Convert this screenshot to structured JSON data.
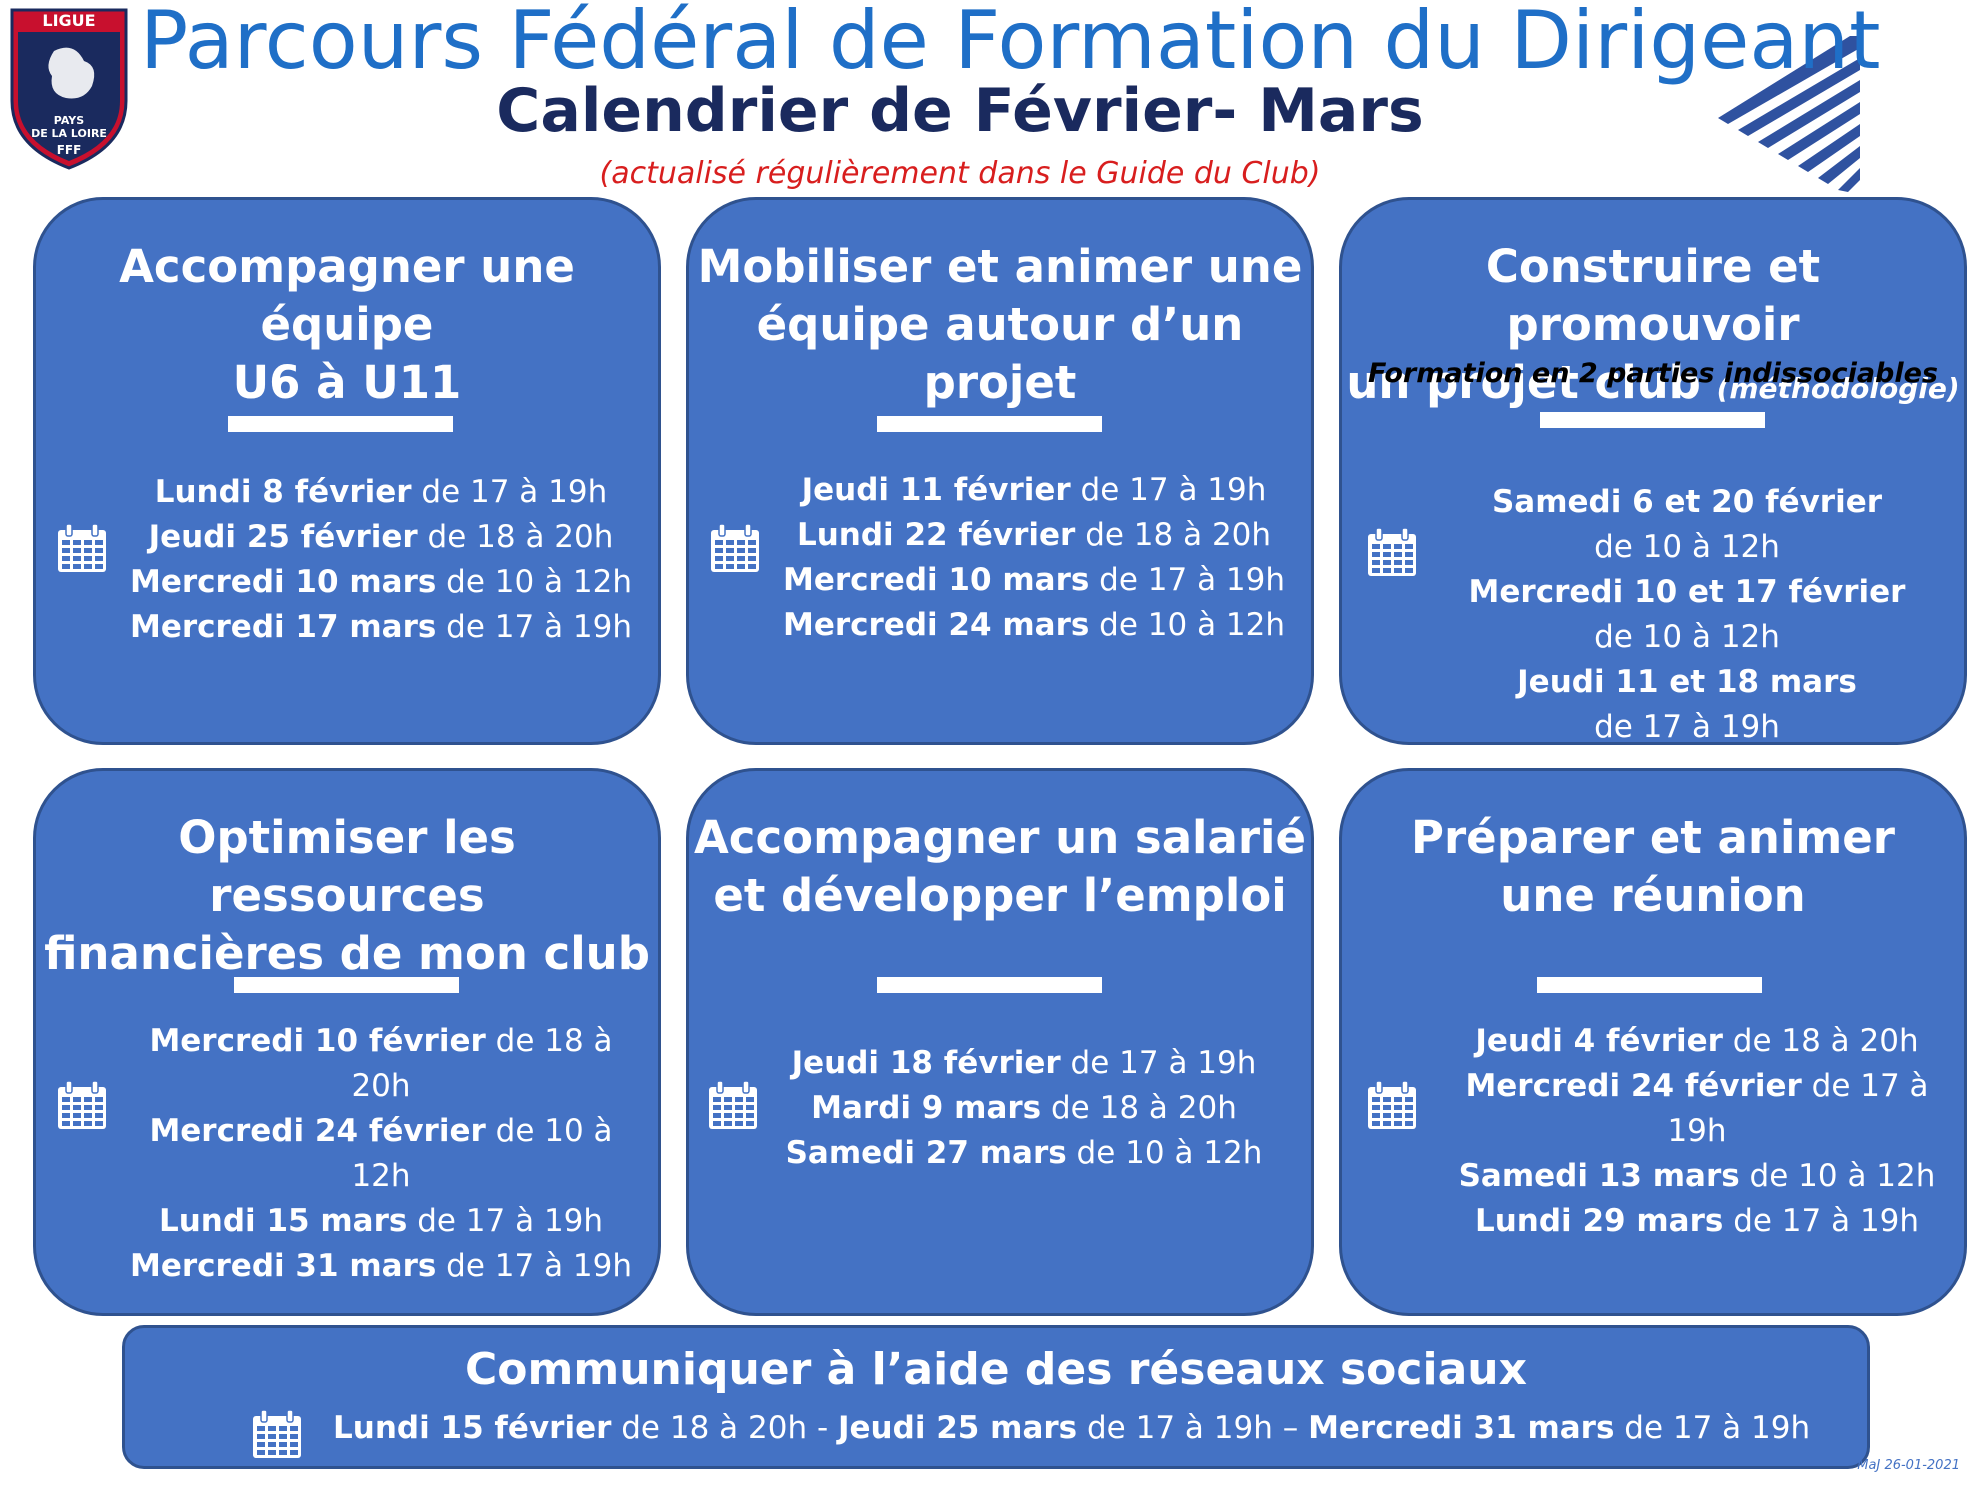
{
  "header": {
    "title": "Parcours Fédéral de Formation du Dirigeant",
    "subtitle": "Calendrier de Février- Mars",
    "note": "(actualisé régulièrement  dans le Guide du Club)"
  },
  "logo": {
    "top": "LIGUE",
    "line1": "PAYS",
    "line2": "DE LA LOIRE",
    "bottom": "FFF"
  },
  "cards": [
    {
      "title_l1": "Accompagner une équipe",
      "title_l2": "U6 à U11",
      "dates": [
        {
          "day": "Lundi 8 février",
          "time": " de 17 à 19h"
        },
        {
          "day": "Jeudi 25 février",
          "time": " de 18 à 20h"
        },
        {
          "day": "Mercredi 10 mars",
          "time": " de 10 à 12h"
        },
        {
          "day": "Mercredi 17 mars",
          "time": " de 17 à 19h"
        }
      ]
    },
    {
      "title_l1": "Mobiliser et animer une",
      "title_l2": "équipe autour d’un projet",
      "dates": [
        {
          "day": "Jeudi 11 février",
          "time": " de 17 à 19h"
        },
        {
          "day": "Lundi 22 février",
          "time": " de 18 à 20h"
        },
        {
          "day": "Mercredi 10 mars",
          "time": " de 17 à 19h"
        },
        {
          "day": "Mercredi 24 mars",
          "time": " de 10 à 12h"
        }
      ]
    },
    {
      "title_l1": "Construire et promouvoir",
      "title_l2": "un projet club ",
      "title_small": "(méthodologie)",
      "note": "Formation en 2 parties indissociables",
      "dates": [
        {
          "day": "Samedi 6 et 20 février",
          "time": ""
        },
        {
          "day": "",
          "time": "de 10 à 12h"
        },
        {
          "day": "Mercredi 10 et 17 février",
          "time": ""
        },
        {
          "day": "",
          "time": "de 10 à 12h"
        },
        {
          "day": "Jeudi 11 et 18 mars",
          "time": ""
        },
        {
          "day": "",
          "time": "de 17 à 19h"
        }
      ]
    },
    {
      "title_l1": "Optimiser les ressources",
      "title_l2": "financières de mon club",
      "dates": [
        {
          "day": "Mercredi 10 février",
          "time": " de 18 à 20h"
        },
        {
          "day": "Mercredi 24 février",
          "time": " de 10 à 12h"
        },
        {
          "day": "Lundi 15 mars",
          "time": " de 17 à 19h"
        },
        {
          "day": "Mercredi 31 mars",
          "time": " de 17 à 19h"
        }
      ]
    },
    {
      "title_l1": "Accompagner un salarié",
      "title_l2": "et développer l’emploi",
      "dates": [
        {
          "day": "Jeudi 18 février",
          "time": " de 17 à 19h"
        },
        {
          "day": "Mardi 9 mars",
          "time": " de 18 à 20h"
        },
        {
          "day": "Samedi 27 mars",
          "time": " de 10 à 12h"
        }
      ]
    },
    {
      "title_l1": "Préparer et animer",
      "title_l2": "une réunion",
      "dates": [
        {
          "day": "Jeudi 4 février",
          "time": " de 18 à 20h"
        },
        {
          "day": "Mercredi 24 février",
          "time": " de 17 à 19h"
        },
        {
          "day": "Samedi 13 mars",
          "time": " de 10 à 12h"
        },
        {
          "day": "Lundi 29 mars",
          "time": " de 17 à 19h"
        }
      ]
    }
  ],
  "bottom": {
    "title": "Communiquer à l’aide des réseaux sociaux",
    "d1_day": "Lundi 15 février",
    "d1_time": " de 18 à 20h - ",
    "d2_day": "Jeudi 25 mars",
    "d2_time": " de 17 à 19h – ",
    "d3_day": "Mercredi 31 mars",
    "d3_time": " de 17 à 19h"
  },
  "footer": {
    "maj": "MaJ 26-01-2021"
  },
  "colors": {
    "card": "#4472c4",
    "title": "#1f6fc7",
    "subtitle": "#1a2a5e",
    "note": "#d81e1e"
  },
  "icons": {
    "calendar": "calendar-icon"
  }
}
